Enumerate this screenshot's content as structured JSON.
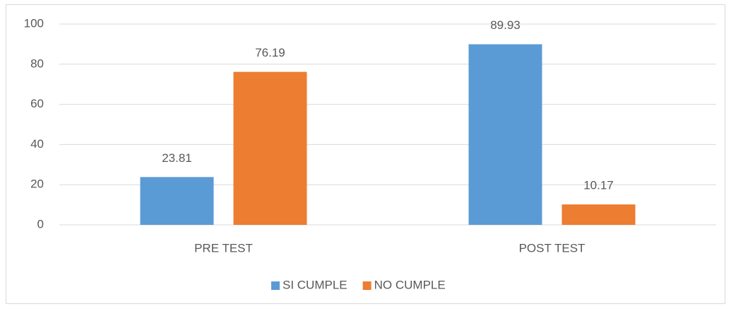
{
  "chart_data": {
    "type": "bar",
    "categories": [
      "PRE TEST",
      "POST TEST"
    ],
    "series": [
      {
        "name": "SI CUMPLE",
        "color": "#5b9bd5",
        "values": [
          23.81,
          89.93
        ]
      },
      {
        "name": "NO CUMPLE",
        "color": "#ed7d31",
        "values": [
          76.19,
          10.17
        ]
      }
    ],
    "ylim": [
      0,
      100
    ],
    "yticks": [
      0,
      20,
      40,
      60,
      80,
      100
    ],
    "grid": true,
    "legend": "bottom"
  }
}
